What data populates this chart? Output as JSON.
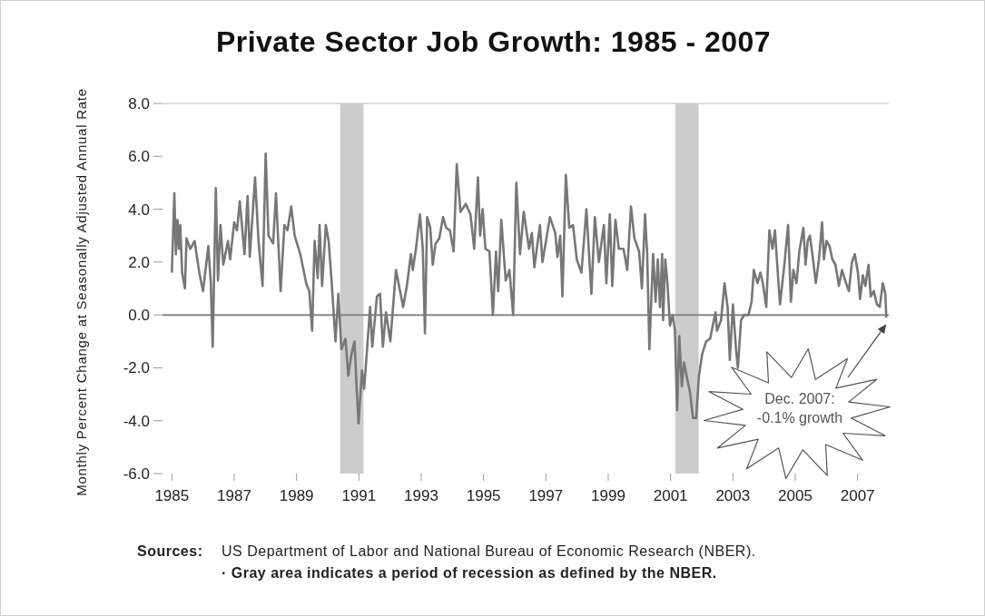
{
  "chart_data": {
    "type": "line",
    "title": "Private Sector Job Growth: 1985 - 2007",
    "ylabel": "Monthly Percent Change at Seasonally Adjusted Annual Rate",
    "color": "#777777",
    "marker": "none",
    "x": [
      1985.0,
      1985.08,
      1985.13,
      1985.18,
      1985.23,
      1985.27,
      1985.33,
      1985.42,
      1985.47,
      1985.59,
      1985.73,
      1985.88,
      1986.0,
      1986.17,
      1986.25,
      1986.31,
      1986.41,
      1986.48,
      1986.56,
      1986.65,
      1986.8,
      1986.87,
      1987.0,
      1987.09,
      1987.18,
      1987.33,
      1987.43,
      1987.5,
      1987.67,
      1987.78,
      1987.91,
      1988.01,
      1988.1,
      1988.25,
      1988.34,
      1988.49,
      1988.61,
      1988.71,
      1988.83,
      1988.94,
      1989.12,
      1989.31,
      1989.41,
      1989.5,
      1989.58,
      1989.68,
      1989.74,
      1989.82,
      1989.94,
      1990.03,
      1990.13,
      1990.25,
      1990.34,
      1990.44,
      1990.57,
      1990.66,
      1990.76,
      1990.86,
      1990.93,
      1990.99,
      1991.1,
      1991.17,
      1991.36,
      1991.43,
      1991.58,
      1991.68,
      1991.77,
      1991.87,
      1992.01,
      1992.19,
      1992.42,
      1992.54,
      1992.67,
      1992.73,
      1992.83,
      1992.96,
      1993.05,
      1993.12,
      1993.19,
      1993.29,
      1993.37,
      1993.46,
      1993.58,
      1993.7,
      1993.8,
      1993.92,
      1994.04,
      1994.14,
      1994.26,
      1994.43,
      1994.58,
      1994.7,
      1994.82,
      1994.89,
      1994.97,
      1995.06,
      1995.19,
      1995.3,
      1995.4,
      1995.47,
      1995.57,
      1995.71,
      1995.83,
      1995.95,
      1996.05,
      1996.17,
      1996.29,
      1996.46,
      1996.55,
      1996.63,
      1996.81,
      1996.89,
      1997.13,
      1997.3,
      1997.37,
      1997.46,
      1997.53,
      1997.64,
      1997.75,
      1997.87,
      1997.99,
      1998.14,
      1998.3,
      1998.46,
      1998.57,
      1998.7,
      1998.86,
      1998.94,
      1999.05,
      1999.13,
      1999.23,
      1999.34,
      1999.49,
      1999.61,
      1999.73,
      1999.84,
      1999.99,
      2000.08,
      2000.18,
      2000.25,
      2000.32,
      2000.44,
      2000.52,
      2000.59,
      2000.66,
      2000.73,
      2000.76,
      2000.83,
      2000.9,
      2000.98,
      2001.07,
      2001.14,
      2001.21,
      2001.28,
      2001.36,
      2001.43,
      2001.53,
      2001.62,
      2001.72,
      2001.82,
      2001.91,
      2002.01,
      2002.14,
      2002.27,
      2002.37,
      2002.44,
      2002.49,
      2002.62,
      2002.73,
      2002.83,
      2002.9,
      2003.0,
      2003.1,
      2003.16,
      2003.26,
      2003.36,
      2003.5,
      2003.6,
      2003.67,
      2003.79,
      2003.88,
      2003.96,
      2004.07,
      2004.17,
      2004.27,
      2004.35,
      2004.41,
      2004.51,
      2004.65,
      2004.77,
      2004.86,
      2004.94,
      2005.04,
      2005.13,
      2005.26,
      2005.33,
      2005.4,
      2005.47,
      2005.57,
      2005.66,
      2005.76,
      2005.86,
      2005.92,
      2006.0,
      2006.1,
      2006.19,
      2006.29,
      2006.4,
      2006.5,
      2006.63,
      2006.72,
      2006.82,
      2006.91,
      2007.01,
      2007.08,
      2007.17,
      2007.25,
      2007.35,
      2007.42,
      2007.52,
      2007.62,
      2007.71,
      2007.81,
      2007.89,
      2007.92
    ],
    "values": [
      1.6,
      4.6,
      2.3,
      3.6,
      2.5,
      3.4,
      1.6,
      1.0,
      2.9,
      2.5,
      2.8,
      1.6,
      0.9,
      2.6,
      1.2,
      -1.2,
      4.8,
      1.3,
      3.4,
      1.9,
      2.8,
      2.1,
      3.5,
      3.2,
      4.3,
      2.3,
      4.5,
      2.2,
      5.2,
      2.8,
      1.1,
      6.1,
      3.0,
      2.7,
      4.6,
      0.9,
      3.4,
      3.2,
      4.1,
      3.0,
      2.3,
      1.2,
      0.9,
      -0.6,
      2.8,
      1.4,
      3.4,
      1.1,
      3.4,
      2.8,
      1.2,
      -1.0,
      0.8,
      -1.3,
      -0.9,
      -2.3,
      -1.5,
      -1.0,
      -2.8,
      -4.1,
      -2.1,
      -2.8,
      0.3,
      -1.2,
      0.7,
      0.8,
      -1.2,
      0.1,
      -1.0,
      1.7,
      0.3,
      1.1,
      2.3,
      1.7,
      2.5,
      3.8,
      2.5,
      -0.7,
      3.7,
      3.3,
      1.9,
      2.7,
      2.9,
      3.7,
      3.3,
      3.2,
      2.4,
      5.7,
      3.9,
      4.2,
      3.8,
      2.5,
      5.2,
      3.0,
      4.0,
      2.5,
      2.4,
      0.0,
      2.4,
      0.9,
      3.6,
      1.3,
      1.7,
      0.0,
      5.0,
      2.3,
      3.9,
      2.5,
      3.1,
      1.8,
      3.4,
      2.0,
      3.7,
      3.1,
      2.2,
      3.0,
      0.7,
      5.3,
      3.3,
      3.4,
      2.1,
      1.6,
      4.0,
      0.8,
      3.7,
      2.0,
      3.4,
      1.2,
      3.8,
      1.1,
      3.6,
      2.5,
      2.5,
      1.7,
      4.1,
      2.9,
      2.4,
      1.0,
      3.8,
      2.3,
      -1.3,
      2.3,
      0.5,
      2.1,
      0.3,
      2.3,
      -0.2,
      2.1,
      1.2,
      -0.4,
      0.0,
      -0.6,
      -3.6,
      -0.8,
      -2.7,
      -1.8,
      -2.4,
      -2.9,
      -3.9,
      -3.9,
      -2.3,
      -1.5,
      -1.0,
      -0.9,
      -0.3,
      0.1,
      -0.6,
      -0.2,
      1.2,
      0.3,
      -1.7,
      0.4,
      -1.3,
      -2.0,
      -0.2,
      0.0,
      0.0,
      0.5,
      1.7,
      1.2,
      1.6,
      1.2,
      0.3,
      3.2,
      2.5,
      3.2,
      2.1,
      0.4,
      1.9,
      3.4,
      0.5,
      1.7,
      1.2,
      2.4,
      3.3,
      1.9,
      2.8,
      3.0,
      2.1,
      1.2,
      2.1,
      3.5,
      2.1,
      2.8,
      2.6,
      2.1,
      1.9,
      1.1,
      1.7,
      1.2,
      0.9,
      2.0,
      2.3,
      1.6,
      0.6,
      1.5,
      1.1,
      1.9,
      0.7,
      0.9,
      0.4,
      0.3,
      1.2,
      0.8,
      -0.1
    ],
    "xlim": [
      1984.7,
      2008
    ],
    "ylim": [
      -6,
      8
    ],
    "xticks": [
      1985,
      1987,
      1989,
      1991,
      1993,
      1995,
      1997,
      1999,
      2001,
      2003,
      2005,
      2007
    ],
    "yticks": [
      {
        "value": 8,
        "label": "8.0"
      },
      {
        "value": 6,
        "label": "6.0"
      },
      {
        "value": 4,
        "label": "4.0"
      },
      {
        "value": 2,
        "label": "2.0"
      },
      {
        "value": 0,
        "label": "0.0"
      },
      {
        "value": -2,
        "label": "-2.0"
      },
      {
        "value": -4,
        "label": "-4.0"
      },
      {
        "value": -6,
        "label": "-6.0"
      }
    ],
    "ref_lines": [
      {
        "axis": "y",
        "value": 0,
        "color": "#888888"
      }
    ],
    "bands": [
      {
        "axis": "x",
        "from": 1990.4,
        "to": 1991.15,
        "color": "#cccccc"
      },
      {
        "axis": "x",
        "from": 2001.15,
        "to": 2001.9,
        "color": "#cccccc"
      }
    ],
    "annotations": [
      "Dec. 2007: -0.1% growth",
      "Sources:",
      "US Department of Labor and National Bureau of Economic Research (NBER).",
      "· Gray area indicates a period of recession as defined by the NBER."
    ]
  }
}
